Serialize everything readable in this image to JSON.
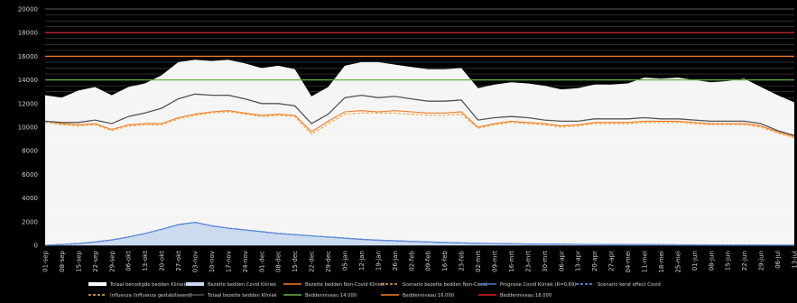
{
  "chart_data": {
    "type": "area",
    "title": "",
    "xlabel": "",
    "ylabel": "",
    "ylim": [
      0,
      20000
    ],
    "yticks": [
      "0",
      "2000",
      "4000",
      "6000",
      "8000",
      "10000",
      "12000",
      "14000",
      "16000",
      "18000",
      "20000"
    ],
    "grid": true,
    "legend_position": "bottom",
    "categories": [
      "01-sep",
      "08-sep",
      "15-sep",
      "22-sep",
      "29-sep",
      "06-okt",
      "13-okt",
      "20-okt",
      "27-okt",
      "03-nov",
      "10-nov",
      "17-nov",
      "24-nov",
      "01-dec",
      "08-dec",
      "15-dec",
      "22-dec",
      "29-dec",
      "05-jan",
      "12-jan",
      "19-jan",
      "26-jan",
      "02-feb",
      "09-feb",
      "16-feb",
      "23-feb",
      "02-mrt",
      "09-mrt",
      "16-mrt",
      "23-mrt",
      "30-mrt",
      "06-apr",
      "13-apr",
      "20-apr",
      "27-apr",
      "04-mei",
      "11-mei",
      "18-mei",
      "25-mei",
      "01-jun",
      "08-jun",
      "15-jun",
      "22-jun",
      "29-jun",
      "06-jul",
      "13-jul"
    ],
    "series": [
      {
        "name": "Totaal benodigde bedden Kliniek",
        "color": "#ffffff",
        "style": "area",
        "values": [
          12700,
          12500,
          13100,
          13400,
          12700,
          13400,
          13700,
          14400,
          15500,
          15700,
          15600,
          15700,
          15400,
          15000,
          15200,
          14900,
          12600,
          13400,
          15200,
          15500,
          15500,
          15300,
          15100,
          14900,
          14900,
          15000,
          13300,
          13600,
          13800,
          13700,
          13500,
          13200,
          13300,
          13600,
          13600,
          13700,
          14200,
          14100,
          14200,
          14000,
          13800,
          13900,
          14100,
          13400,
          12700,
          12100
        ]
      },
      {
        "name": "Bezette bedden Covid Kliniek",
        "color": "#c9d8f0",
        "style": "area",
        "values": [
          0,
          60,
          150,
          280,
          450,
          700,
          1000,
          1350,
          1750,
          1950,
          1650,
          1450,
          1300,
          1150,
          1000,
          900,
          800,
          700,
          600,
          500,
          430,
          380,
          330,
          280,
          240,
          200,
          170,
          150,
          130,
          110,
          100,
          90,
          80,
          70,
          60,
          55,
          50,
          45,
          40,
          35,
          30,
          25,
          20,
          20,
          15,
          10
        ]
      },
      {
        "name": "Bezette bedden Non-Covid Kliniek",
        "color": "#f07d28",
        "style": "line",
        "values": [
          10500,
          10300,
          10200,
          10300,
          9800,
          10200,
          10300,
          10300,
          10800,
          11100,
          11300,
          11400,
          11200,
          11000,
          11100,
          11000,
          9600,
          10500,
          11300,
          11400,
          11300,
          11400,
          11300,
          11200,
          11200,
          11300,
          10000,
          10300,
          10500,
          10400,
          10300,
          10100,
          10200,
          10400,
          10400,
          10400,
          10500,
          10500,
          10500,
          10400,
          10300,
          10300,
          10300,
          10100,
          9600,
          9200
        ]
      },
      {
        "name": "Scenario bezette bedden Non-Covid",
        "color": "#f0a060",
        "style": "dashed",
        "values": [
          10400,
          10200,
          10100,
          10200,
          9700,
          10100,
          10200,
          10200,
          10700,
          11000,
          11200,
          11300,
          11100,
          10900,
          11000,
          10900,
          9400,
          10300,
          11100,
          11200,
          11200,
          11200,
          11100,
          11000,
          11000,
          11100,
          9900,
          10200,
          10400,
          10300,
          10200,
          10000,
          10100,
          10300,
          10300,
          10300,
          10400,
          10400,
          10400,
          10300,
          10200,
          10200,
          10200,
          10000,
          9500,
          9100
        ]
      },
      {
        "name": "Prognose Covid Kliniek (R=0,89)",
        "color": "#4c7bd0",
        "style": "line",
        "values": [
          0,
          60,
          150,
          280,
          450,
          700,
          1000,
          1350,
          1750,
          1950,
          1650,
          1450,
          1300,
          1150,
          1000,
          900,
          800,
          700,
          600,
          500,
          430,
          380,
          330,
          280,
          240,
          200,
          170,
          150,
          130,
          110,
          100,
          90,
          80,
          70,
          60,
          55,
          50,
          45,
          40,
          35,
          30,
          25,
          20,
          20,
          15,
          10
        ]
      },
      {
        "name": "Scenario kerst effect Covid",
        "color": "#6f9ae0",
        "style": "dashed",
        "values": [
          0,
          60,
          150,
          280,
          450,
          700,
          1000,
          1350,
          1750,
          1950,
          1650,
          1450,
          1300,
          1150,
          1000,
          900,
          800,
          700,
          600,
          500,
          430,
          380,
          330,
          280,
          240,
          200,
          170,
          150,
          130,
          110,
          100,
          90,
          80,
          70,
          60,
          55,
          50,
          45,
          40,
          35,
          30,
          25,
          20,
          20,
          15,
          10
        ]
      },
      {
        "name": "Influenza (influenza gestabiliseerd)",
        "color": "#f0b050",
        "style": "dashed",
        "values": [
          10400,
          10200,
          10100,
          10200,
          9700,
          10100,
          10200,
          10200,
          10700,
          11000,
          11200,
          11300,
          11100,
          10900,
          11000,
          10900,
          9400,
          10300,
          11100,
          11200,
          11200,
          11200,
          11100,
          11000,
          11000,
          11100,
          9900,
          10200,
          10400,
          10300,
          10200,
          10000,
          10100,
          10300,
          10300,
          10300,
          10400,
          10400,
          10400,
          10300,
          10200,
          10200,
          10200,
          10000,
          9500,
          9100
        ]
      },
      {
        "name": "Totaal bezette bedden Kliniek",
        "color": "#555555",
        "style": "line",
        "values": [
          10500,
          10400,
          10400,
          10600,
          10300,
          10900,
          11200,
          11600,
          12400,
          12800,
          12700,
          12700,
          12400,
          12000,
          12000,
          11800,
          10300,
          11100,
          12500,
          12700,
          12500,
          12600,
          12400,
          12200,
          12200,
          12300,
          10600,
          10800,
          10900,
          10800,
          10600,
          10500,
          10500,
          10700,
          10700,
          10700,
          10800,
          10700,
          10700,
          10600,
          10500,
          10500,
          10500,
          10300,
          9700,
          9300
        ]
      },
      {
        "name": "Beddenniveau 14.000",
        "color": "#6ab04a",
        "style": "hline",
        "level": 14000
      },
      {
        "name": "Beddenniveau 16.000",
        "color": "#f07d28",
        "style": "hline",
        "level": 16000
      },
      {
        "name": "Beddenniveau 18.000",
        "color": "#e0202a",
        "style": "hline",
        "level": 18000
      }
    ]
  }
}
